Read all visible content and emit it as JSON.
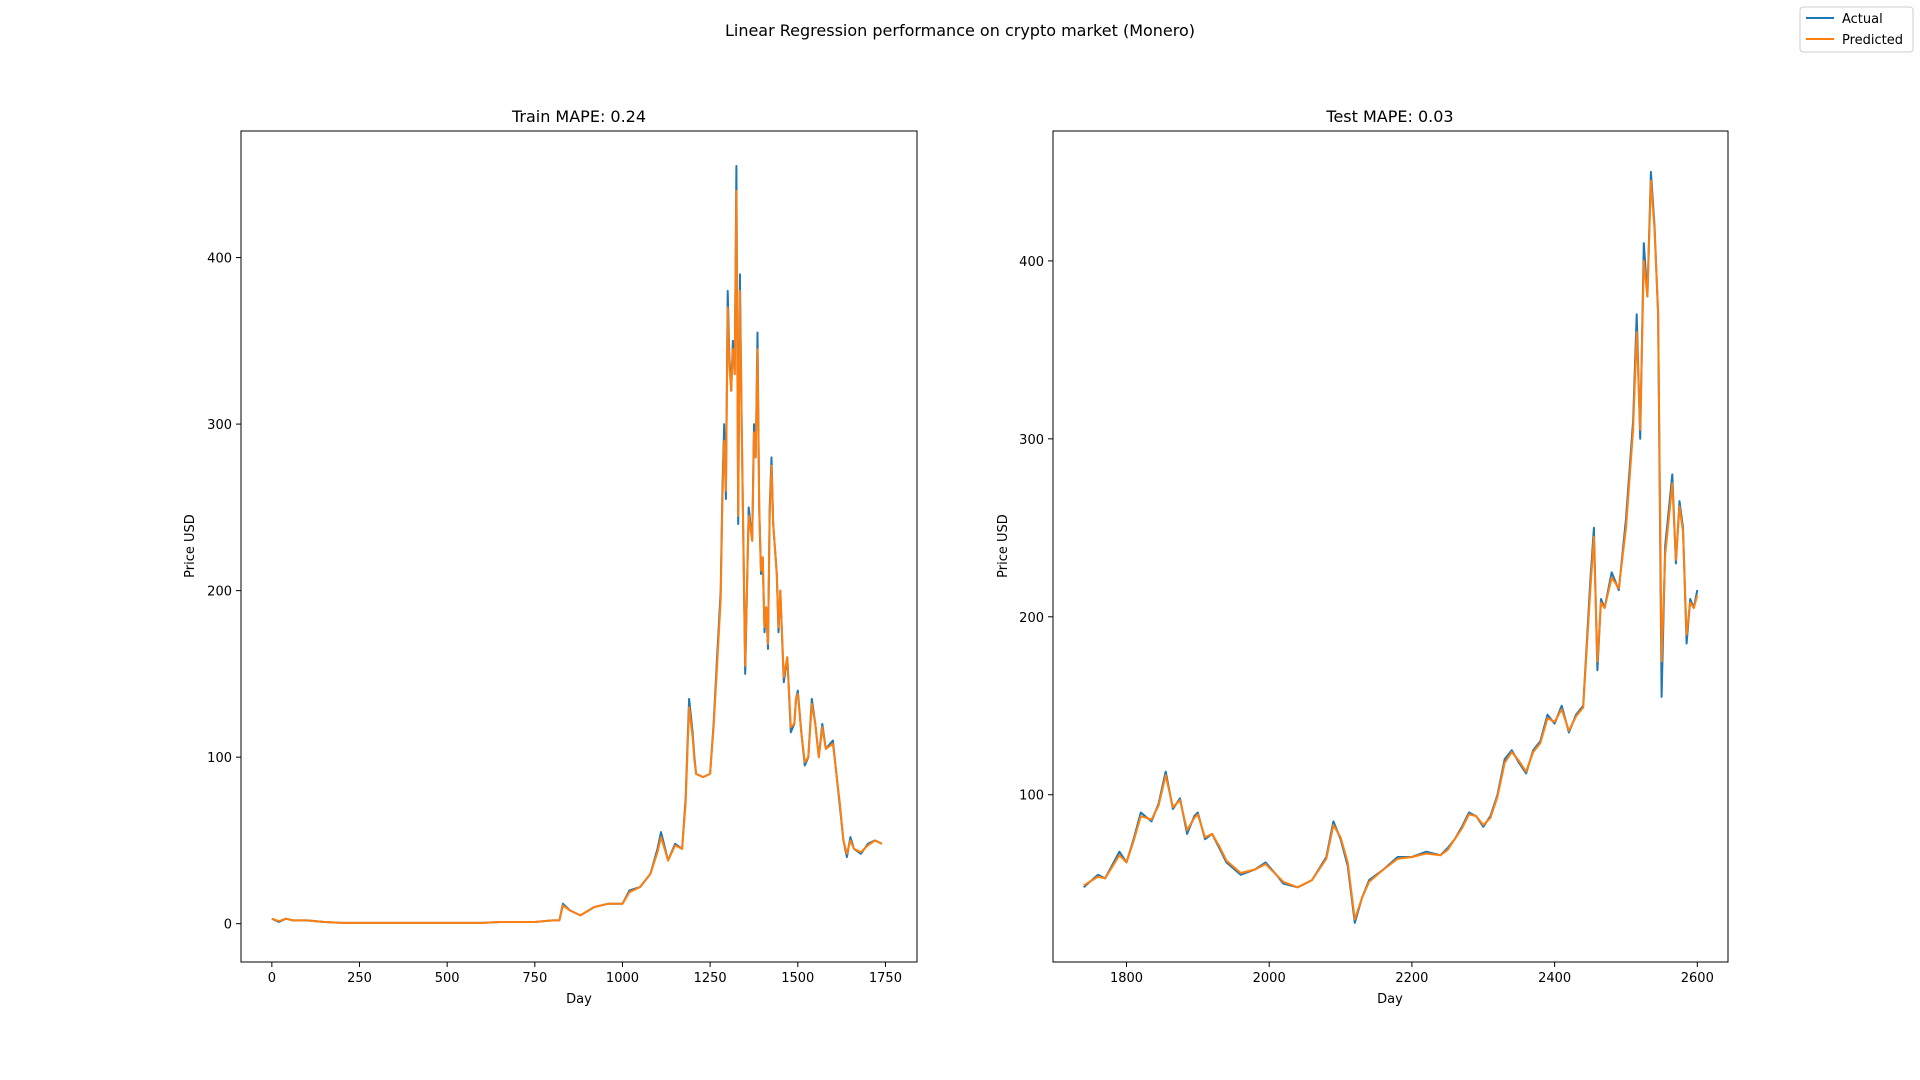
{
  "figure": {
    "suptitle": "Linear Regression performance on crypto market (Monero)",
    "legend": {
      "placement": "top-right",
      "items": [
        {
          "label": "Actual",
          "color": "#1f77b4"
        },
        {
          "label": "Predicted",
          "color": "#ff7f0e"
        }
      ]
    }
  },
  "chart_data": [
    {
      "type": "line",
      "title": "Train MAPE: 0.24",
      "xlabel": "Day",
      "ylabel": "Price USD",
      "xlim": [
        -88,
        1840
      ],
      "ylim": [
        -23,
        476
      ],
      "xticks": [
        0,
        250,
        500,
        750,
        1000,
        1250,
        1500,
        1750
      ],
      "yticks": [
        0,
        100,
        200,
        300,
        400
      ],
      "grid": false,
      "series": [
        {
          "name": "Actual",
          "color": "#1f77b4",
          "x": [
            0,
            20,
            40,
            60,
            100,
            150,
            200,
            300,
            400,
            500,
            600,
            650,
            700,
            750,
            800,
            820,
            830,
            850,
            880,
            920,
            960,
            1000,
            1020,
            1050,
            1080,
            1100,
            1110,
            1130,
            1150,
            1170,
            1180,
            1190,
            1200,
            1205,
            1210,
            1230,
            1250,
            1260,
            1270,
            1280,
            1285,
            1290,
            1295,
            1300,
            1305,
            1310,
            1315,
            1320,
            1325,
            1330,
            1335,
            1340,
            1350,
            1360,
            1370,
            1375,
            1380,
            1385,
            1390,
            1395,
            1400,
            1405,
            1410,
            1415,
            1420,
            1425,
            1430,
            1440,
            1445,
            1450,
            1460,
            1470,
            1480,
            1490,
            1495,
            1500,
            1510,
            1520,
            1530,
            1540,
            1550,
            1560,
            1570,
            1580,
            1600,
            1620,
            1630,
            1640,
            1650,
            1660,
            1680,
            1700,
            1720,
            1740
          ],
          "y": [
            3,
            1,
            3,
            2,
            2,
            1,
            0.5,
            0.5,
            0.5,
            0.5,
            0.5,
            1,
            1,
            1,
            2,
            2,
            12,
            8,
            5,
            10,
            12,
            12,
            20,
            22,
            30,
            45,
            55,
            38,
            48,
            45,
            75,
            135,
            115,
            100,
            90,
            88,
            90,
            120,
            160,
            200,
            260,
            300,
            255,
            380,
            340,
            320,
            350,
            330,
            455,
            240,
            390,
            300,
            150,
            250,
            230,
            300,
            280,
            355,
            250,
            210,
            220,
            175,
            190,
            165,
            250,
            280,
            240,
            210,
            175,
            200,
            145,
            160,
            115,
            120,
            135,
            140,
            115,
            95,
            100,
            135,
            120,
            100,
            120,
            105,
            110,
            70,
            50,
            40,
            52,
            45,
            42,
            48,
            50,
            48
          ]
        },
        {
          "name": "Predicted",
          "color": "#ff7f0e",
          "x": [
            0,
            20,
            40,
            60,
            100,
            150,
            200,
            300,
            400,
            500,
            600,
            650,
            700,
            750,
            800,
            820,
            830,
            850,
            880,
            920,
            960,
            1000,
            1020,
            1050,
            1080,
            1100,
            1110,
            1130,
            1150,
            1170,
            1180,
            1190,
            1200,
            1205,
            1210,
            1230,
            1250,
            1260,
            1270,
            1280,
            1285,
            1290,
            1295,
            1300,
            1305,
            1310,
            1315,
            1320,
            1325,
            1330,
            1335,
            1340,
            1350,
            1360,
            1370,
            1375,
            1380,
            1385,
            1390,
            1395,
            1400,
            1405,
            1410,
            1415,
            1420,
            1425,
            1430,
            1440,
            1445,
            1450,
            1460,
            1470,
            1480,
            1490,
            1495,
            1500,
            1510,
            1520,
            1530,
            1540,
            1550,
            1560,
            1570,
            1580,
            1600,
            1620,
            1630,
            1640,
            1650,
            1660,
            1680,
            1700,
            1720,
            1740
          ],
          "y": [
            3,
            1.5,
            3,
            2,
            2,
            1,
            0.5,
            0.5,
            0.5,
            0.5,
            0.5,
            1,
            1,
            1,
            2,
            2,
            11,
            8,
            5,
            10,
            12,
            12,
            19,
            22,
            30,
            43,
            52,
            38,
            47,
            45,
            72,
            130,
            112,
            98,
            90,
            88,
            90,
            118,
            155,
            195,
            255,
            290,
            260,
            370,
            335,
            320,
            345,
            330,
            440,
            245,
            380,
            300,
            155,
            245,
            230,
            295,
            280,
            345,
            250,
            212,
            220,
            178,
            190,
            168,
            245,
            275,
            240,
            210,
            178,
            200,
            148,
            160,
            118,
            120,
            135,
            138,
            115,
            97,
            100,
            132,
            120,
            100,
            118,
            105,
            108,
            72,
            50,
            42,
            50,
            45,
            43,
            47,
            50,
            48
          ]
        }
      ]
    },
    {
      "type": "line",
      "title": "Test MAPE: 0.03",
      "xlabel": "Day",
      "ylabel": "Price USD",
      "xlim": [
        1697,
        2643
      ],
      "ylim": [
        6,
        473
      ],
      "xticks": [
        1800,
        2000,
        2200,
        2400,
        2600
      ],
      "yticks": [
        100,
        200,
        300,
        400
      ],
      "grid": false,
      "series": [
        {
          "name": "Actual",
          "color": "#1f77b4",
          "x": [
            1740,
            1760,
            1770,
            1790,
            1800,
            1810,
            1820,
            1835,
            1845,
            1855,
            1865,
            1875,
            1885,
            1895,
            1900,
            1910,
            1920,
            1930,
            1940,
            1960,
            1980,
            1995,
            2010,
            2020,
            2040,
            2060,
            2080,
            2090,
            2100,
            2110,
            2120,
            2130,
            2140,
            2160,
            2180,
            2200,
            2220,
            2240,
            2250,
            2260,
            2270,
            2280,
            2290,
            2300,
            2310,
            2320,
            2330,
            2340,
            2350,
            2360,
            2370,
            2380,
            2390,
            2400,
            2410,
            2420,
            2430,
            2440,
            2450,
            2455,
            2460,
            2465,
            2470,
            2480,
            2490,
            2500,
            2510,
            2515,
            2520,
            2525,
            2530,
            2535,
            2540,
            2545,
            2550,
            2555,
            2560,
            2565,
            2570,
            2575,
            2580,
            2585,
            2590,
            2595,
            2600
          ],
          "y": [
            48,
            55,
            53,
            68,
            62,
            75,
            90,
            85,
            95,
            113,
            92,
            98,
            78,
            88,
            90,
            75,
            78,
            70,
            62,
            55,
            58,
            62,
            55,
            50,
            48,
            52,
            65,
            85,
            75,
            60,
            28,
            42,
            52,
            58,
            65,
            65,
            68,
            66,
            70,
            75,
            82,
            90,
            88,
            82,
            88,
            100,
            120,
            125,
            118,
            112,
            125,
            130,
            145,
            140,
            150,
            135,
            145,
            150,
            220,
            250,
            170,
            210,
            205,
            225,
            215,
            255,
            310,
            370,
            300,
            410,
            380,
            450,
            420,
            370,
            155,
            240,
            260,
            280,
            230,
            265,
            250,
            185,
            210,
            205,
            215
          ]
        },
        {
          "name": "Predicted",
          "color": "#ff7f0e",
          "x": [
            1740,
            1760,
            1770,
            1790,
            1800,
            1810,
            1820,
            1835,
            1845,
            1855,
            1865,
            1875,
            1885,
            1895,
            1900,
            1910,
            1920,
            1930,
            1940,
            1960,
            1980,
            1995,
            2010,
            2020,
            2040,
            2060,
            2080,
            2090,
            2100,
            2110,
            2120,
            2130,
            2140,
            2160,
            2180,
            2200,
            2220,
            2240,
            2250,
            2260,
            2270,
            2280,
            2290,
            2300,
            2310,
            2320,
            2330,
            2340,
            2350,
            2360,
            2370,
            2380,
            2390,
            2400,
            2410,
            2420,
            2430,
            2440,
            2450,
            2455,
            2460,
            2465,
            2470,
            2480,
            2490,
            2500,
            2510,
            2515,
            2520,
            2525,
            2530,
            2535,
            2540,
            2545,
            2550,
            2555,
            2560,
            2565,
            2570,
            2575,
            2580,
            2585,
            2590,
            2595,
            2600
          ],
          "y": [
            49,
            54,
            53,
            66,
            62,
            74,
            88,
            86,
            94,
            111,
            93,
            97,
            80,
            87,
            89,
            76,
            78,
            71,
            63,
            56,
            58,
            61,
            55,
            51,
            48,
            52,
            64,
            83,
            76,
            62,
            30,
            42,
            51,
            58,
            64,
            65,
            67,
            66,
            69,
            75,
            81,
            89,
            88,
            83,
            87,
            99,
            118,
            124,
            119,
            113,
            124,
            129,
            143,
            141,
            148,
            136,
            144,
            149,
            215,
            245,
            175,
            208,
            205,
            222,
            216,
            250,
            305,
            360,
            305,
            400,
            380,
            445,
            418,
            372,
            175,
            235,
            255,
            275,
            232,
            262,
            248,
            190,
            208,
            205,
            212
          ]
        }
      ]
    }
  ]
}
